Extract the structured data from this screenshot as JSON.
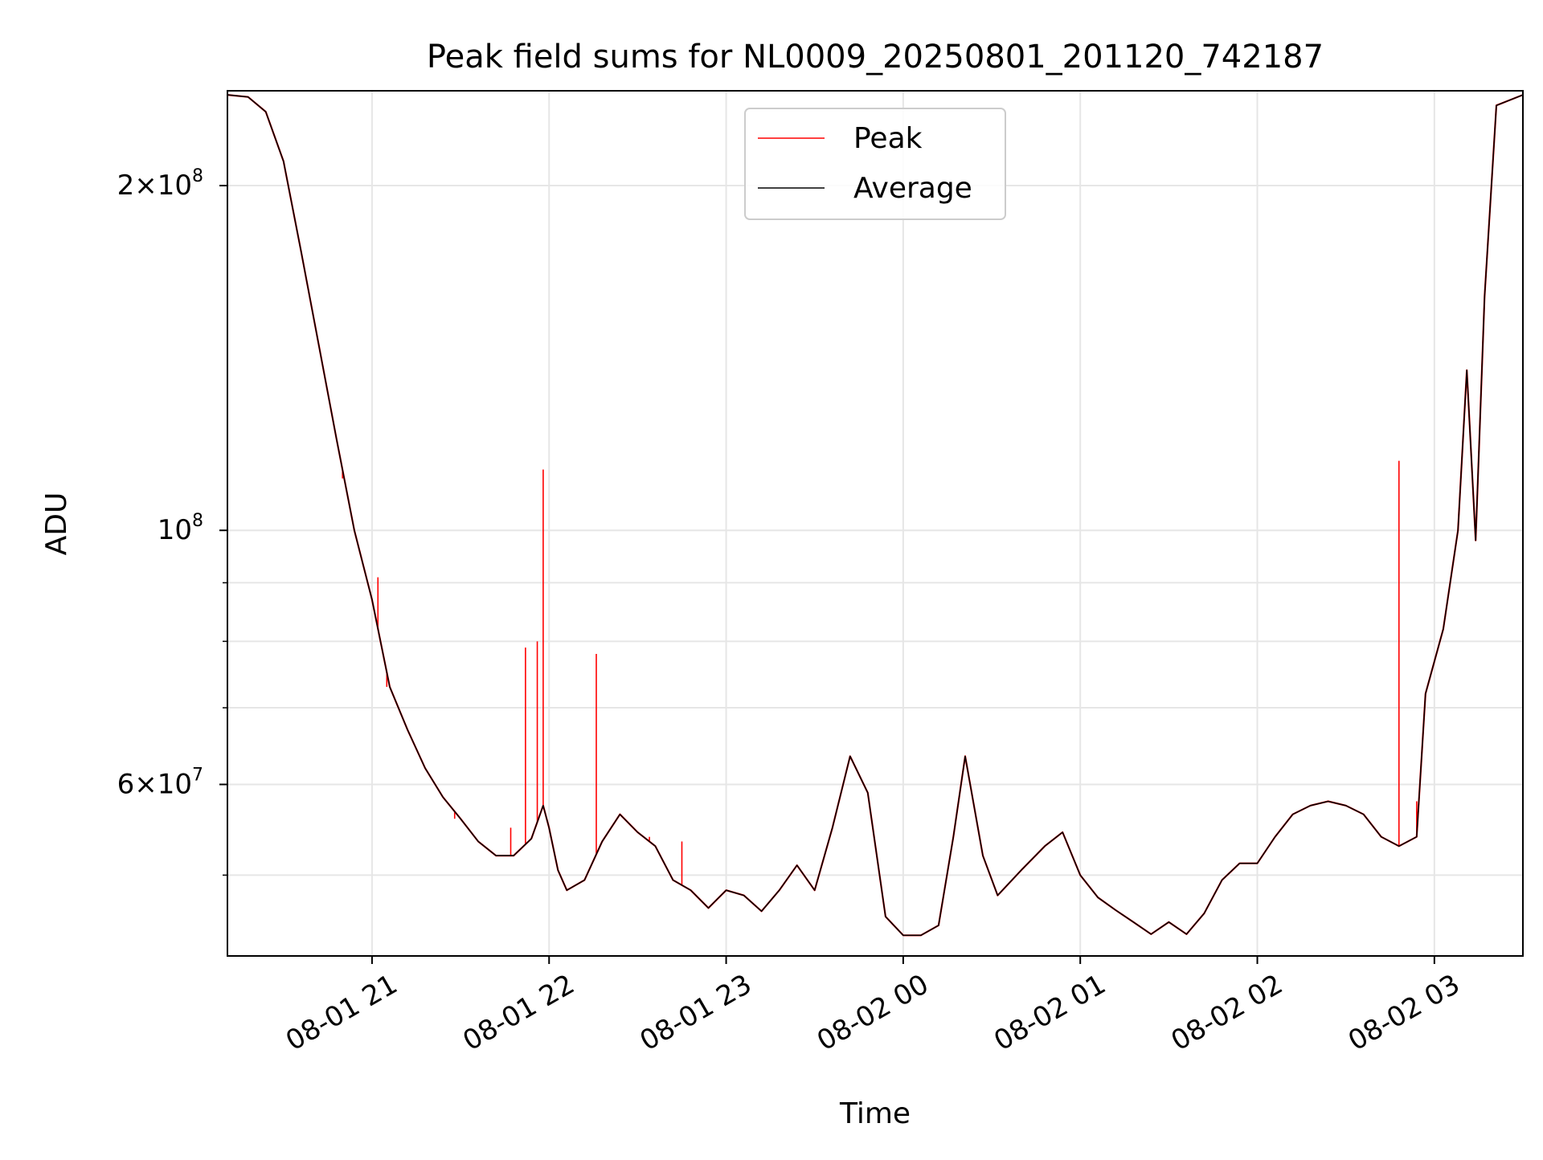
{
  "chart_data": {
    "type": "line",
    "title": "Peak field sums for NL0009_20250801_201120_742187",
    "xlabel": "Time",
    "ylabel": "ADU",
    "y_scale": "log",
    "grid": true,
    "legend_location": "upper center",
    "xlim": [
      "2025-08-01 20:11",
      "2025-08-02 03:30"
    ],
    "ylim": [
      42500000,
      242000000
    ],
    "x_ticks": [
      {
        "value": "2025-08-01 21:00",
        "label": "08-01 21"
      },
      {
        "value": "2025-08-01 22:00",
        "label": "08-01 22"
      },
      {
        "value": "2025-08-01 23:00",
        "label": "08-01 23"
      },
      {
        "value": "2025-08-02 00:00",
        "label": "08-02 00"
      },
      {
        "value": "2025-08-02 01:00",
        "label": "08-02 01"
      },
      {
        "value": "2025-08-02 02:00",
        "label": "08-02 02"
      },
      {
        "value": "2025-08-02 03:00",
        "label": "08-02 03"
      }
    ],
    "y_ticks": [
      {
        "value": 200000000,
        "base": "2×10",
        "exp": "8"
      },
      {
        "value": 100000000,
        "base": "10",
        "exp": "8"
      },
      {
        "value": 60000000,
        "base": "6×10",
        "exp": "7"
      }
    ],
    "y_minor_ticks": [
      50000000,
      70000000,
      80000000,
      90000000
    ],
    "series": [
      {
        "name": "Average",
        "color": "#000000",
        "points": [
          [
            "2025-08-01 20:11",
            240000000
          ],
          [
            "2025-08-01 20:18",
            239000000
          ],
          [
            "2025-08-01 20:24",
            232000000
          ],
          [
            "2025-08-01 20:30",
            210000000
          ],
          [
            "2025-08-01 20:36",
            175000000
          ],
          [
            "2025-08-01 20:42",
            145000000
          ],
          [
            "2025-08-01 20:48",
            120000000
          ],
          [
            "2025-08-01 20:54",
            100000000
          ],
          [
            "2025-08-01 21:00",
            87000000
          ],
          [
            "2025-08-01 21:06",
            73000000
          ],
          [
            "2025-08-01 21:12",
            67000000
          ],
          [
            "2025-08-01 21:18",
            62000000
          ],
          [
            "2025-08-01 21:24",
            58500000
          ],
          [
            "2025-08-01 21:30",
            56000000
          ],
          [
            "2025-08-01 21:36",
            53500000
          ],
          [
            "2025-08-01 21:42",
            52000000
          ],
          [
            "2025-08-01 21:48",
            52000000
          ],
          [
            "2025-08-01 21:54",
            53800000
          ],
          [
            "2025-08-01 21:58",
            57500000
          ],
          [
            "2025-08-01 22:00",
            55000000
          ],
          [
            "2025-08-01 22:03",
            50500000
          ],
          [
            "2025-08-01 22:06",
            48500000
          ],
          [
            "2025-08-01 22:12",
            49500000
          ],
          [
            "2025-08-01 22:18",
            53500000
          ],
          [
            "2025-08-01 22:24",
            56500000
          ],
          [
            "2025-08-01 22:30",
            54500000
          ],
          [
            "2025-08-01 22:36",
            53000000
          ],
          [
            "2025-08-01 22:42",
            49500000
          ],
          [
            "2025-08-01 22:48",
            48500000
          ],
          [
            "2025-08-01 22:54",
            46800000
          ],
          [
            "2025-08-01 23:00",
            48500000
          ],
          [
            "2025-08-01 23:06",
            48000000
          ],
          [
            "2025-08-01 23:12",
            46500000
          ],
          [
            "2025-08-01 23:18",
            48500000
          ],
          [
            "2025-08-01 23:24",
            51000000
          ],
          [
            "2025-08-01 23:30",
            48500000
          ],
          [
            "2025-08-01 23:36",
            55000000
          ],
          [
            "2025-08-01 23:42",
            63500000
          ],
          [
            "2025-08-01 23:48",
            59000000
          ],
          [
            "2025-08-01 23:54",
            46000000
          ],
          [
            "2025-08-02 00:00",
            44300000
          ],
          [
            "2025-08-02 00:06",
            44300000
          ],
          [
            "2025-08-02 00:12",
            45200000
          ],
          [
            "2025-08-02 00:17",
            54000000
          ],
          [
            "2025-08-02 00:21",
            63500000
          ],
          [
            "2025-08-02 00:27",
            52000000
          ],
          [
            "2025-08-02 00:32",
            48000000
          ],
          [
            "2025-08-02 00:40",
            50500000
          ],
          [
            "2025-08-02 00:48",
            53000000
          ],
          [
            "2025-08-02 00:54",
            54500000
          ],
          [
            "2025-08-02 01:00",
            50000000
          ],
          [
            "2025-08-02 01:06",
            47800000
          ],
          [
            "2025-08-02 01:12",
            46600000
          ],
          [
            "2025-08-02 01:18",
            45500000
          ],
          [
            "2025-08-02 01:24",
            44400000
          ],
          [
            "2025-08-02 01:30",
            45500000
          ],
          [
            "2025-08-02 01:36",
            44400000
          ],
          [
            "2025-08-02 01:42",
            46300000
          ],
          [
            "2025-08-02 01:48",
            49500000
          ],
          [
            "2025-08-02 01:54",
            51200000
          ],
          [
            "2025-08-02 02:00",
            51200000
          ],
          [
            "2025-08-02 02:06",
            54000000
          ],
          [
            "2025-08-02 02:12",
            56500000
          ],
          [
            "2025-08-02 02:18",
            57500000
          ],
          [
            "2025-08-02 02:24",
            58000000
          ],
          [
            "2025-08-02 02:30",
            57500000
          ],
          [
            "2025-08-02 02:36",
            56500000
          ],
          [
            "2025-08-02 02:42",
            54000000
          ],
          [
            "2025-08-02 02:48",
            53000000
          ],
          [
            "2025-08-02 02:54",
            54000000
          ],
          [
            "2025-08-02 02:57",
            72000000
          ],
          [
            "2025-08-02 03:03",
            82000000
          ],
          [
            "2025-08-02 03:08",
            100000000
          ],
          [
            "2025-08-02 03:11",
            138000000
          ],
          [
            "2025-08-02 03:14",
            98000000
          ],
          [
            "2025-08-02 03:17",
            160000000
          ],
          [
            "2025-08-02 03:21",
            235000000
          ],
          [
            "2025-08-02 03:30",
            240000000
          ]
        ]
      },
      {
        "name": "Peak",
        "color": "#ff0000",
        "note_in_legend": true,
        "spikes": [
          [
            "2025-08-01 20:50",
            111000000
          ],
          [
            "2025-08-01 21:02",
            91000000
          ],
          [
            "2025-08-01 21:05",
            73000000
          ],
          [
            "2025-08-01 21:28",
            56000000
          ],
          [
            "2025-08-01 21:47",
            55000000
          ],
          [
            "2025-08-01 21:52",
            79000000
          ],
          [
            "2025-08-01 21:56",
            80000000
          ],
          [
            "2025-08-01 21:58",
            113000000
          ],
          [
            "2025-08-01 22:16",
            78000000
          ],
          [
            "2025-08-01 22:34",
            54000000
          ],
          [
            "2025-08-01 22:45",
            53500000
          ],
          [
            "2025-08-02 02:48",
            115000000
          ],
          [
            "2025-08-02 02:54",
            58000000
          ]
        ]
      }
    ]
  }
}
